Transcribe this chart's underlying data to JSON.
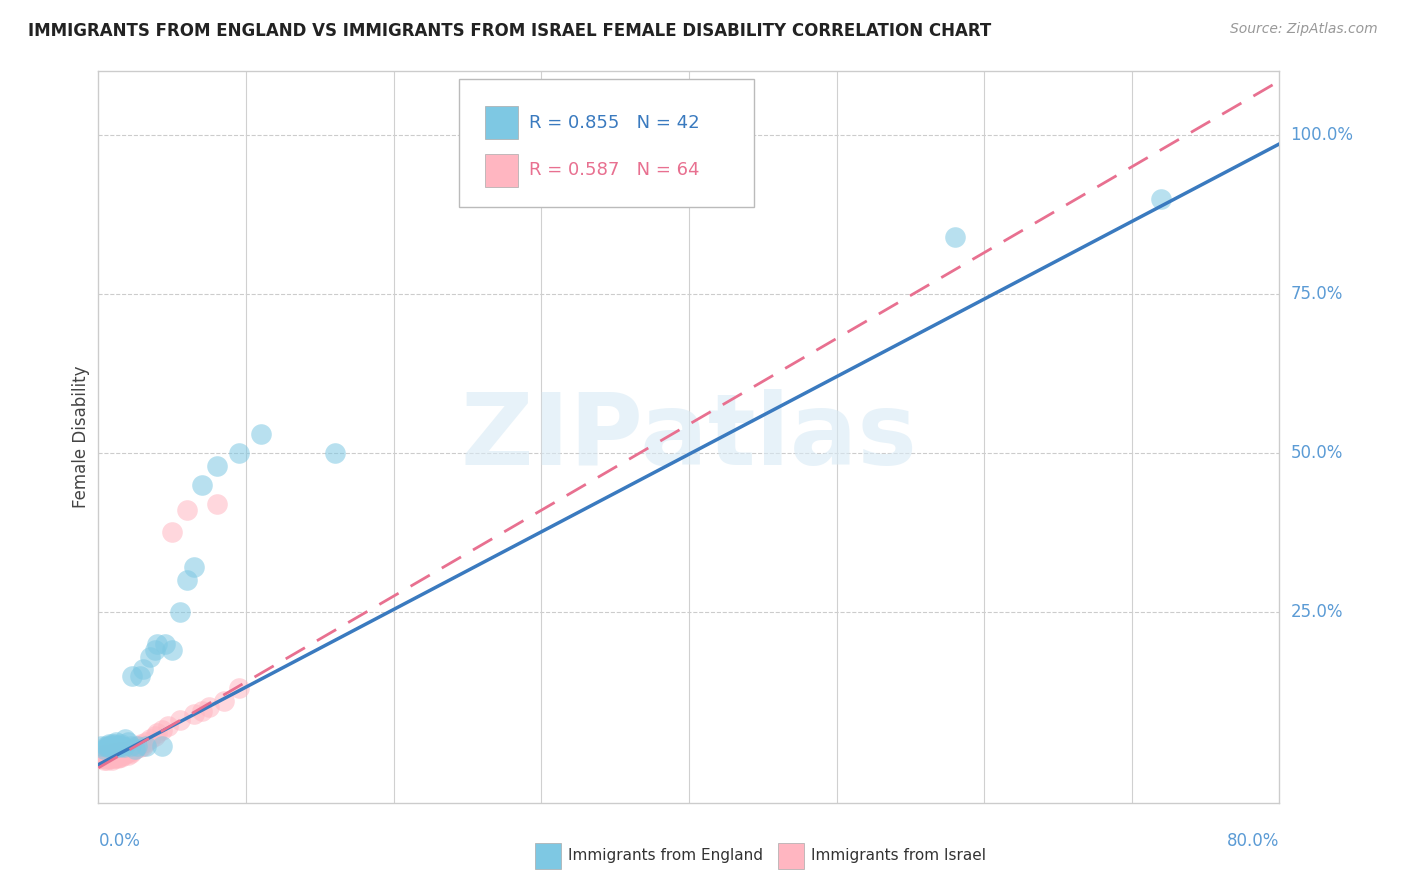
{
  "title": "IMMIGRANTS FROM ENGLAND VS IMMIGRANTS FROM ISRAEL FEMALE DISABILITY CORRELATION CHART",
  "source": "Source: ZipAtlas.com",
  "ylabel": "Female Disability",
  "ytick_labels": [
    "25.0%",
    "50.0%",
    "75.0%",
    "100.0%"
  ],
  "ytick_values": [
    0.25,
    0.5,
    0.75,
    1.0
  ],
  "xlim": [
    0.0,
    0.8
  ],
  "ylim": [
    -0.05,
    1.1
  ],
  "legend_england": "R = 0.855  N = 42",
  "legend_israel": "R = 0.587  N = 64",
  "color_england": "#7ec8e3",
  "color_israel": "#ffb6c1",
  "color_england_line": "#3a7abf",
  "color_israel_line": "#e87090",
  "watermark": "ZIPatlas",
  "england_slope": 1.22,
  "england_intercept": 0.01,
  "israel_slope": 1.35,
  "israel_intercept": 0.005,
  "england_points_x": [
    0.002,
    0.004,
    0.005,
    0.006,
    0.007,
    0.007,
    0.008,
    0.009,
    0.01,
    0.011,
    0.012,
    0.012,
    0.013,
    0.014,
    0.015,
    0.016,
    0.017,
    0.018,
    0.02,
    0.022,
    0.023,
    0.025,
    0.026,
    0.028,
    0.03,
    0.032,
    0.035,
    0.038,
    0.04,
    0.043,
    0.045,
    0.05,
    0.055,
    0.06,
    0.065,
    0.07,
    0.08,
    0.095,
    0.11,
    0.16,
    0.58,
    0.72
  ],
  "england_points_y": [
    0.04,
    0.035,
    0.04,
    0.038,
    0.04,
    0.042,
    0.038,
    0.042,
    0.04,
    0.042,
    0.038,
    0.045,
    0.04,
    0.038,
    0.042,
    0.04,
    0.038,
    0.05,
    0.045,
    0.04,
    0.15,
    0.035,
    0.04,
    0.15,
    0.16,
    0.04,
    0.18,
    0.19,
    0.2,
    0.04,
    0.2,
    0.19,
    0.25,
    0.3,
    0.32,
    0.45,
    0.48,
    0.5,
    0.53,
    0.5,
    0.84,
    0.9
  ],
  "israel_points_x": [
    0.001,
    0.002,
    0.002,
    0.003,
    0.003,
    0.004,
    0.004,
    0.005,
    0.005,
    0.006,
    0.006,
    0.007,
    0.007,
    0.007,
    0.008,
    0.008,
    0.009,
    0.009,
    0.01,
    0.01,
    0.01,
    0.011,
    0.011,
    0.012,
    0.012,
    0.013,
    0.013,
    0.014,
    0.014,
    0.015,
    0.015,
    0.016,
    0.016,
    0.017,
    0.018,
    0.019,
    0.02,
    0.02,
    0.021,
    0.022,
    0.022,
    0.023,
    0.024,
    0.025,
    0.026,
    0.027,
    0.028,
    0.029,
    0.03,
    0.032,
    0.035,
    0.038,
    0.04,
    0.043,
    0.047,
    0.05,
    0.055,
    0.06,
    0.065,
    0.07,
    0.075,
    0.08,
    0.085,
    0.095
  ],
  "israel_points_y": [
    0.02,
    0.02,
    0.025,
    0.02,
    0.025,
    0.018,
    0.025,
    0.02,
    0.025,
    0.018,
    0.025,
    0.02,
    0.025,
    0.03,
    0.02,
    0.025,
    0.018,
    0.025,
    0.02,
    0.022,
    0.028,
    0.02,
    0.025,
    0.022,
    0.028,
    0.02,
    0.028,
    0.022,
    0.03,
    0.022,
    0.03,
    0.025,
    0.032,
    0.025,
    0.028,
    0.03,
    0.025,
    0.03,
    0.03,
    0.028,
    0.035,
    0.032,
    0.038,
    0.035,
    0.038,
    0.04,
    0.038,
    0.042,
    0.04,
    0.045,
    0.05,
    0.055,
    0.06,
    0.065,
    0.07,
    0.375,
    0.08,
    0.41,
    0.09,
    0.095,
    0.1,
    0.42,
    0.11,
    0.13
  ]
}
